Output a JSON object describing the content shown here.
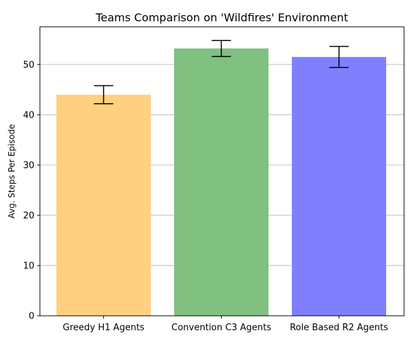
{
  "chart_data": {
    "type": "bar",
    "title": "Teams Comparison on 'Wildfires' Environment",
    "xlabel": "",
    "ylabel": "Avg. Steps Per Episode",
    "categories": [
      "Greedy H1 Agents",
      "Convention C3 Agents",
      "Role Based R2 Agents"
    ],
    "values": [
      44.0,
      53.2,
      51.5
    ],
    "errors": [
      1.8,
      1.6,
      2.1
    ],
    "colors": [
      "#ffd080",
      "#80c080",
      "#8080ff"
    ],
    "ylim": [
      0,
      57.5
    ],
    "yticks": [
      0,
      10,
      20,
      30,
      40,
      50
    ],
    "grid": "y",
    "legend": "none"
  }
}
